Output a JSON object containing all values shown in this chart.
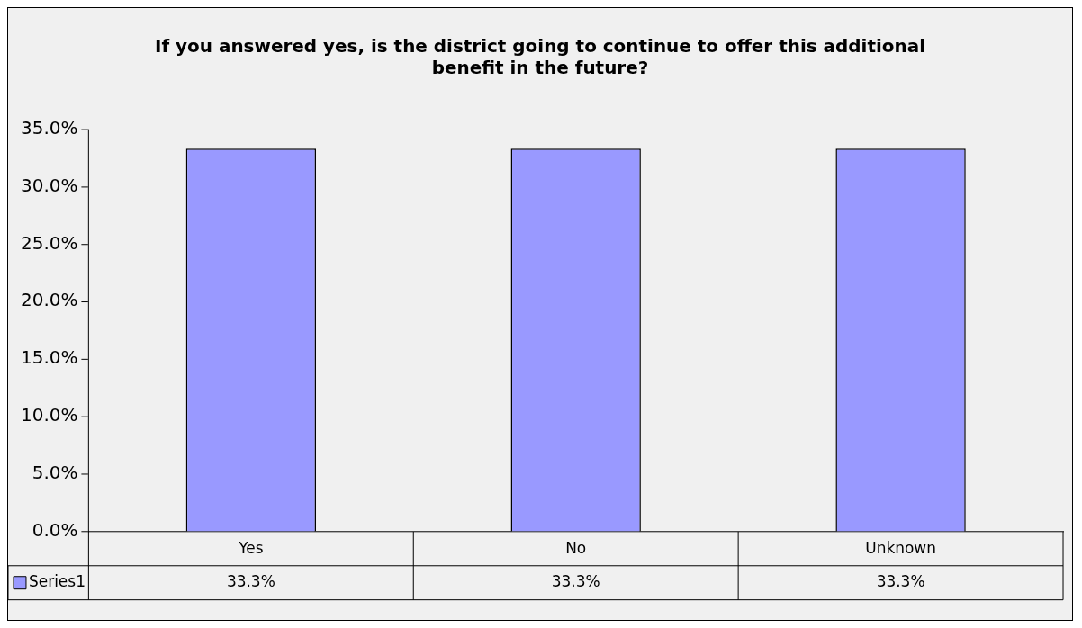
{
  "chart_data": {
    "type": "bar",
    "title": "If you answered yes, is the district going to continue to offer this additional benefit in the future?",
    "categories": [
      "Yes",
      "No",
      "Unknown"
    ],
    "series": [
      {
        "name": "Series1",
        "color": "#9999ff",
        "values": [
          33.3,
          33.3,
          33.3
        ],
        "value_labels": [
          "33.3%",
          "33.3%",
          "33.3%"
        ]
      }
    ],
    "ylim": [
      0,
      35
    ],
    "yticks": [
      {
        "value": 0,
        "label": "0.0%"
      },
      {
        "value": 5,
        "label": "5.0%"
      },
      {
        "value": 10,
        "label": "10.0%"
      },
      {
        "value": 15,
        "label": "15.0%"
      },
      {
        "value": 20,
        "label": "20.0%"
      },
      {
        "value": 25,
        "label": "25.0%"
      },
      {
        "value": 30,
        "label": "30.0%"
      },
      {
        "value": 35,
        "label": "35.0%"
      }
    ],
    "grid": false,
    "legend": "bottom left"
  }
}
